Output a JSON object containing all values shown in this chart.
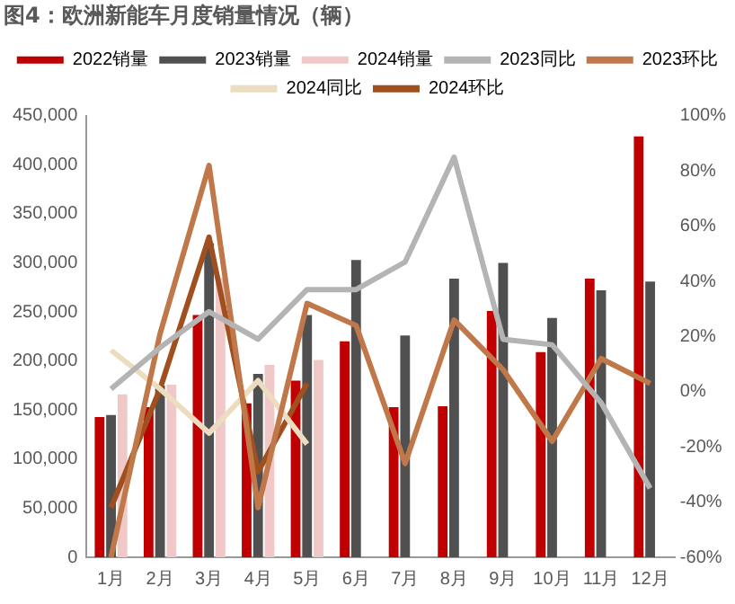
{
  "chart_data": {
    "type": "bar",
    "title": "图4：欧洲新能车月度销量情况（辆）",
    "categories": [
      "1月",
      "2月",
      "3月",
      "4月",
      "5月",
      "6月",
      "7月",
      "8月",
      "9月",
      "10月",
      "11月",
      "12月"
    ],
    "series": [
      {
        "name": "2022销量",
        "color": "#c00000",
        "values": [
          143000,
          153000,
          247000,
          157000,
          180000,
          220000,
          153000,
          154000,
          251000,
          209000,
          284000,
          429000
        ]
      },
      {
        "name": "2023销量",
        "color": "#505050",
        "values": [
          145000,
          175000,
          320000,
          187000,
          247000,
          303000,
          226000,
          284000,
          300000,
          244000,
          272000,
          281000
        ]
      },
      {
        "name": "2024销量",
        "color": "#f0c8c8",
        "values": [
          166000,
          176000,
          285000,
          196000,
          201000,
          null,
          null,
          null,
          null,
          null,
          null,
          null
        ]
      },
      {
        "name": "2023同比",
        "type": "line",
        "axis": "y2",
        "color": "#b4b4b4",
        "values": [
          1,
          16,
          29,
          19,
          37,
          37,
          47,
          85,
          19,
          17,
          -4,
          -35
        ]
      },
      {
        "name": "2023环比",
        "type": "line",
        "axis": "y2",
        "color": "#c0784a",
        "values": [
          -60,
          21,
          82,
          -42,
          32,
          24,
          -26,
          26,
          8,
          -18,
          12,
          3
        ]
      },
      {
        "name": "2024同比",
        "type": "line",
        "axis": "y2",
        "color": "#ecdcc0",
        "values": [
          15,
          1,
          -15,
          4,
          -19,
          null,
          null,
          null,
          null,
          null,
          null,
          null
        ]
      },
      {
        "name": "2024环比",
        "type": "line",
        "axis": "y2",
        "color": "#a0501e",
        "values": [
          -42,
          1,
          56,
          -29,
          3,
          null,
          null,
          null,
          null,
          null,
          null,
          null
        ]
      }
    ],
    "ylim": [
      0,
      450000
    ],
    "yticks": [
      {
        "value": 0,
        "label": "0"
      },
      {
        "value": 50000,
        "label": "50,000"
      },
      {
        "value": 100000,
        "label": "100,000"
      },
      {
        "value": 150000,
        "label": "150,000"
      },
      {
        "value": 200000,
        "label": "200,000"
      },
      {
        "value": 250000,
        "label": "250,000"
      },
      {
        "value": 300000,
        "label": "300,000"
      },
      {
        "value": 350000,
        "label": "350,000"
      },
      {
        "value": 400000,
        "label": "400,000"
      },
      {
        "value": 450000,
        "label": "450,000"
      }
    ],
    "y2lim": [
      -60,
      100
    ],
    "y2ticks": [
      {
        "value": -60,
        "label": "-60%"
      },
      {
        "value": -40,
        "label": "-40%"
      },
      {
        "value": -20,
        "label": "-20%"
      },
      {
        "value": 0,
        "label": "0%"
      },
      {
        "value": 20,
        "label": "20%"
      },
      {
        "value": 40,
        "label": "40%"
      },
      {
        "value": 60,
        "label": "60%"
      },
      {
        "value": 80,
        "label": "80%"
      },
      {
        "value": 100,
        "label": "100%"
      }
    ],
    "grid": false,
    "legend": "top",
    "marker": "none"
  }
}
